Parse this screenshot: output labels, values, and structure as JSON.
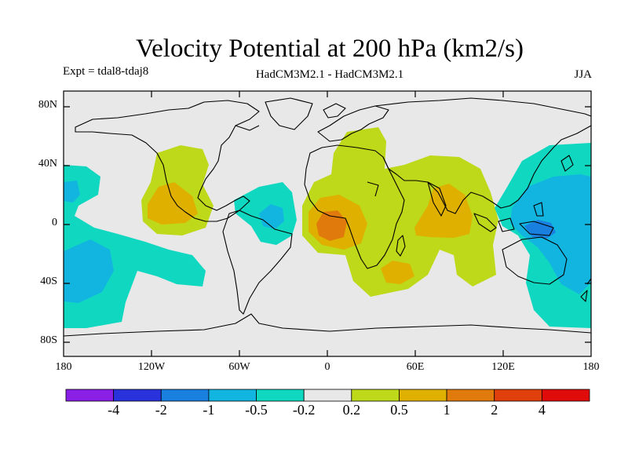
{
  "title": "Velocity Potential at 200 hPa (km2/s)",
  "expt": "Expt = tdal8-tdaj8",
  "model": "HadCM3M2.1 - HadCM3M2.1",
  "season": "JJA",
  "lat_labels": [
    "80N",
    "40N",
    "0",
    "40S",
    "80S"
  ],
  "lon_labels": [
    "180",
    "120W",
    "60W",
    "0",
    "60E",
    "120E",
    "180"
  ],
  "colorbar": {
    "labels": [
      "-4",
      "-2",
      "-1",
      "-0.5",
      "-0.2",
      "0.2",
      "0.5",
      "1",
      "2",
      "4"
    ],
    "colors": [
      "#8a1fe6",
      "#2a32dc",
      "#1a80e0",
      "#12b4e0",
      "#10d8c0",
      "#e8e8e8",
      "#bed81a",
      "#dfb000",
      "#e07a0c",
      "#e0400c",
      "#e00c0c"
    ]
  },
  "palette": {
    "neutral": "#e8e8e8",
    "cyan_light": "#10d8c0",
    "cyan_mid": "#12b4e0",
    "blue": "#1a80e0",
    "yellowgreen": "#bed81a",
    "gold": "#dfb000",
    "orange": "#e07a0c"
  }
}
